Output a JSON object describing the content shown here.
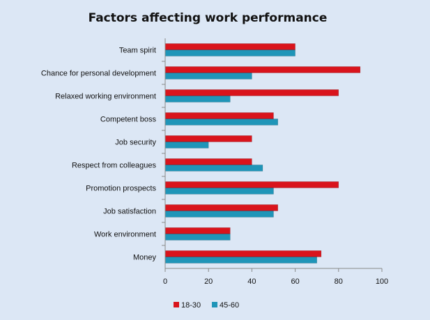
{
  "chart_data": {
    "type": "bar",
    "orientation": "horizontal",
    "title": "Factors affecting work performance",
    "xlabel": "",
    "ylabel": "",
    "xlim": [
      0,
      100
    ],
    "xticks": [
      0,
      20,
      40,
      60,
      80,
      100
    ],
    "grid": false,
    "legend_position": "bottom-left",
    "categories": [
      "Team spirit",
      "Chance for personal development",
      "Relaxed working environment",
      "Competent boss",
      "Job security",
      "Respect from colleagues",
      "Promotion prospects",
      "Job satisfaction",
      "Work environment",
      "Money"
    ],
    "series": [
      {
        "name": "18-30",
        "color": "#d9141c",
        "values": [
          60,
          90,
          80,
          50,
          40,
          40,
          80,
          52,
          30,
          72
        ]
      },
      {
        "name": "45-60",
        "color": "#1f95b8",
        "values": [
          60,
          40,
          30,
          52,
          20,
          45,
          50,
          50,
          30,
          70
        ]
      }
    ]
  }
}
